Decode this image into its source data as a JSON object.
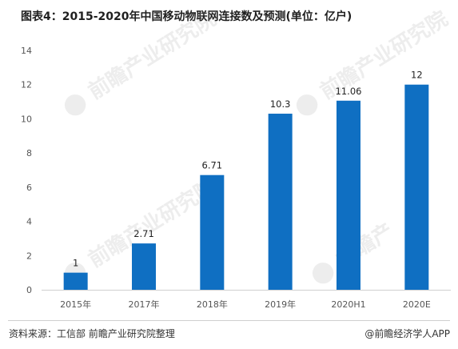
{
  "chart_data": {
    "type": "bar",
    "title": "图表4：2015-2020年中国移动物联网连接数及预测(单位：亿户)",
    "categories": [
      "2015年",
      "2017年",
      "2018年",
      "2019年",
      "2020H1",
      "2020E"
    ],
    "values": [
      1,
      2.71,
      6.71,
      10.3,
      11.06,
      12
    ],
    "data_labels": [
      "1",
      "2.71",
      "6.71",
      "10.3",
      "11.06",
      "12"
    ],
    "ylim": [
      0,
      14
    ],
    "yticks": [
      0,
      2,
      4,
      6,
      8,
      10,
      12,
      14
    ],
    "grid": false,
    "legend": "none",
    "bar_color": "#0f6fc2"
  },
  "footer": {
    "source": "资料来源：工信部 前瞻产业研究院整理",
    "credit": "@前瞻经济学人APP"
  }
}
